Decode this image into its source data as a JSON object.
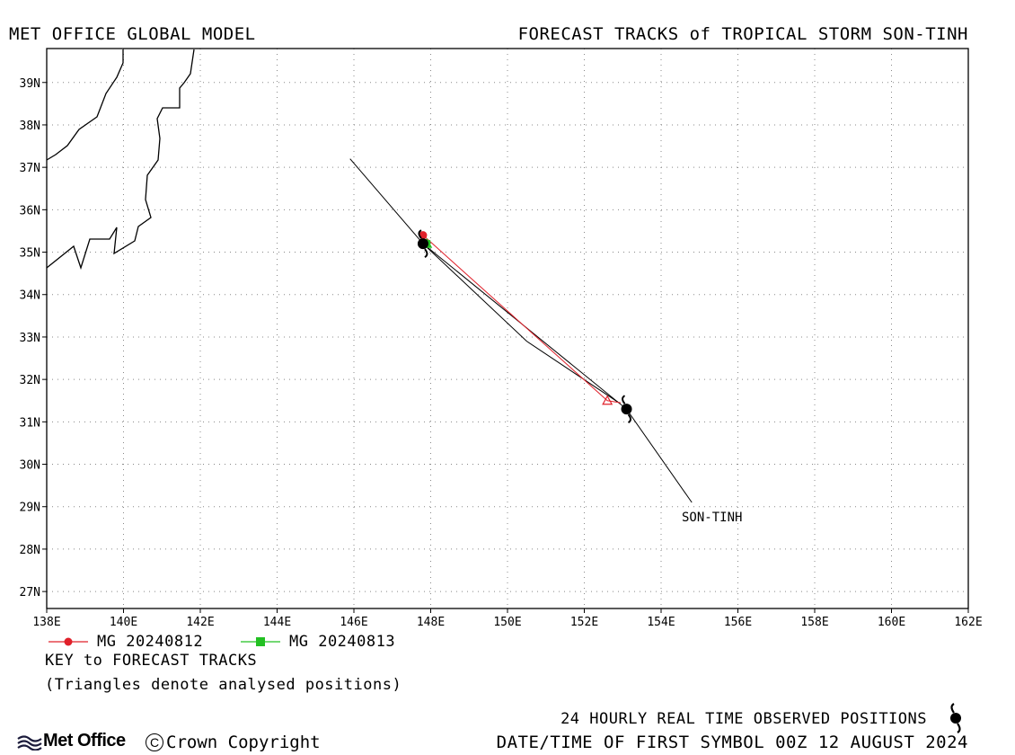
{
  "header": {
    "left_title": "MET OFFICE GLOBAL MODEL",
    "right_title": "FORECAST TRACKS of TROPICAL STORM SON-TINH"
  },
  "map": {
    "lon_range": [
      138,
      162
    ],
    "lat_range": [
      26.6,
      39.8
    ],
    "lon_ticks": [
      "138E",
      "140E",
      "142E",
      "144E",
      "146E",
      "148E",
      "150E",
      "152E",
      "154E",
      "156E",
      "158E",
      "160E",
      "162E"
    ],
    "lat_ticks": [
      "27N",
      "28N",
      "29N",
      "30N",
      "31N",
      "32N",
      "33N",
      "34N",
      "35N",
      "36N",
      "37N",
      "38N",
      "39N"
    ],
    "grid": "dotted",
    "storm_label": "SON-TINH",
    "observed_track": [
      [
        154.8,
        29.1
      ],
      [
        153.1,
        31.3
      ],
      [
        147.8,
        35.2
      ]
    ],
    "observed_extension": [
      [
        147.8,
        35.2
      ],
      [
        145.9,
        37.2
      ]
    ],
    "observed_symbols": [
      [
        153.1,
        31.3
      ],
      [
        147.8,
        35.2
      ]
    ],
    "forecast_tracks": [
      {
        "name": "MG 20240812",
        "color": "#e0202a",
        "marker": "circle",
        "points": [
          [
            147.8,
            35.4
          ],
          [
            152.6,
            31.5
          ],
          [
            152.95,
            31.45
          ]
        ],
        "analysed": [
          152.6,
          31.5
        ]
      },
      {
        "name": "MG 20240813",
        "color": "#22c022",
        "marker": "square",
        "points": [
          [
            147.9,
            35.2
          ]
        ],
        "analysed": [
          147.9,
          35.2
        ]
      }
    ],
    "second_black_track": [
      [
        147.8,
        35.2
      ],
      [
        150.5,
        32.9
      ],
      [
        152.9,
        31.45
      ]
    ]
  },
  "legend": {
    "items": [
      {
        "label": "MG 20240812",
        "color": "#e0202a",
        "marker": "circle"
      },
      {
        "label": "MG 20240813",
        "color": "#22c022",
        "marker": "square"
      }
    ],
    "key_title": "KEY to FORECAST TRACKS",
    "key_note": "(Triangles denote analysed positions)"
  },
  "footer": {
    "observed_text": "24 HOURLY REAL TIME OBSERVED POSITIONS",
    "date_text": "DATE/TIME OF FIRST SYMBOL 00Z 12 AUGUST 2024",
    "logo_text": "Met Office",
    "copyright_text": "Crown Copyright"
  }
}
